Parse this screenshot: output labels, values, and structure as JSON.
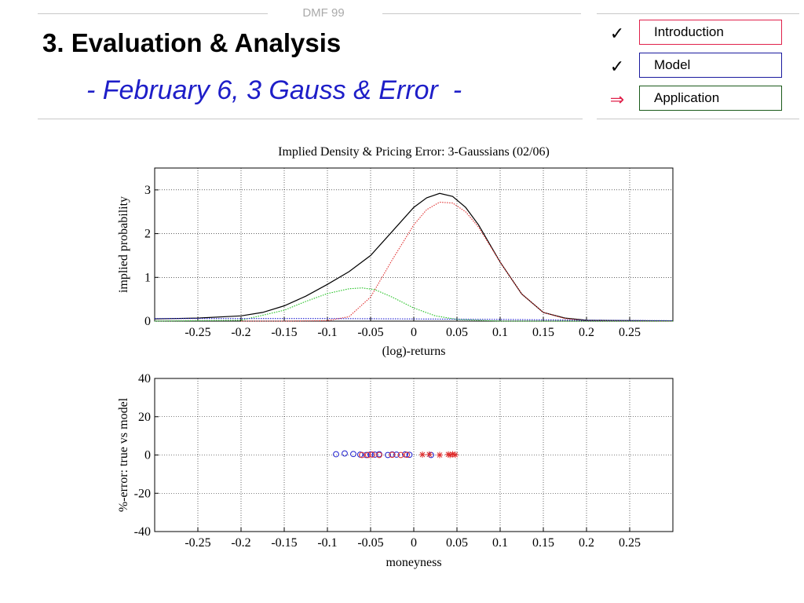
{
  "header": {
    "tag": "DMF 99",
    "title": "3. Evaluation & Analysis",
    "subtitle": "- February 6, 3 Gauss & Error  -"
  },
  "nav": {
    "items": [
      {
        "label": "Introduction",
        "mark": "✓",
        "mark_icon": "check-icon",
        "color": "#e0204a"
      },
      {
        "label": "Model",
        "mark": "✓",
        "mark_icon": "check-icon",
        "color": "#1a1a9e"
      },
      {
        "label": "Application",
        "mark": "⇒",
        "mark_icon": "arrow-right-icon",
        "color": "#1a5a1a"
      }
    ],
    "mark_colors": [
      "#000000",
      "#000000",
      "#e0204a"
    ]
  },
  "colors": {
    "title_text": "#000000",
    "subtitle_text": "#1e1ec8",
    "header_tag": "#aaaaaa"
  },
  "chart_data": [
    {
      "type": "line",
      "title": "Implied Density & Pricing Error: 3-Gaussians (02/06)",
      "xlabel": "(log)-returns",
      "ylabel": "implied probability",
      "xlim": [
        -0.3,
        0.3
      ],
      "ylim": [
        0,
        3.5
      ],
      "xticks": [
        -0.25,
        -0.2,
        -0.15,
        -0.1,
        -0.05,
        0,
        0.05,
        0.1,
        0.15,
        0.2,
        0.25
      ],
      "xtick_labels": [
        "-0.25",
        "-0.2",
        "-0.15",
        "-0.1",
        "-0.05",
        "0",
        "0.05",
        "0.1",
        "0.15",
        "0.2",
        "0.25"
      ],
      "yticks": [
        0,
        1,
        2,
        3
      ],
      "ytick_labels": [
        "0",
        "1",
        "2",
        "3"
      ],
      "grid": true,
      "series": [
        {
          "color": "#000000",
          "style": "solid",
          "x": [
            -0.3,
            -0.25,
            -0.2,
            -0.175,
            -0.15,
            -0.125,
            -0.1,
            -0.075,
            -0.05,
            -0.025,
            0,
            0.015,
            0.03,
            0.045,
            0.06,
            0.075,
            0.1,
            0.125,
            0.15,
            0.175,
            0.2,
            0.25,
            0.3
          ],
          "y": [
            0.05,
            0.07,
            0.12,
            0.2,
            0.35,
            0.57,
            0.84,
            1.13,
            1.5,
            2.05,
            2.6,
            2.82,
            2.92,
            2.85,
            2.6,
            2.2,
            1.35,
            0.62,
            0.2,
            0.07,
            0.02,
            0.01,
            0.005
          ]
        },
        {
          "color": "#e03030",
          "style": "dotted",
          "x": [
            -0.2,
            -0.15,
            -0.1,
            -0.075,
            -0.05,
            -0.025,
            0,
            0.015,
            0.03,
            0.045,
            0.06,
            0.075,
            0.1,
            0.125,
            0.15,
            0.175,
            0.2,
            0.3
          ],
          "y": [
            0,
            0,
            0.01,
            0.1,
            0.55,
            1.4,
            2.2,
            2.55,
            2.72,
            2.7,
            2.5,
            2.15,
            1.35,
            0.62,
            0.2,
            0.06,
            0.01,
            0
          ]
        },
        {
          "color": "#20c020",
          "style": "dotted",
          "x": [
            -0.3,
            -0.2,
            -0.15,
            -0.125,
            -0.1,
            -0.075,
            -0.06,
            -0.045,
            -0.025,
            0,
            0.025,
            0.05,
            0.1,
            0.2,
            0.3
          ],
          "y": [
            0,
            0.02,
            0.25,
            0.45,
            0.63,
            0.74,
            0.76,
            0.72,
            0.55,
            0.3,
            0.12,
            0.04,
            0,
            0,
            0
          ]
        },
        {
          "color": "#2020d0",
          "style": "dotted",
          "x": [
            -0.3,
            -0.2,
            -0.1,
            0,
            0.1,
            0.2,
            0.3
          ],
          "y": [
            0.06,
            0.06,
            0.06,
            0.05,
            0.04,
            0.02,
            0.01
          ]
        }
      ]
    },
    {
      "type": "scatter",
      "title": "",
      "xlabel": "moneyness",
      "ylabel": "%-error: true vs model",
      "xlim": [
        -0.3,
        0.3
      ],
      "ylim": [
        -40,
        40
      ],
      "xticks": [
        -0.25,
        -0.2,
        -0.15,
        -0.1,
        -0.05,
        0,
        0.05,
        0.1,
        0.15,
        0.2,
        0.25
      ],
      "xtick_labels": [
        "-0.25",
        "-0.2",
        "-0.15",
        "-0.1",
        "-0.05",
        "0",
        "0.05",
        "0.1",
        "0.15",
        "0.2",
        "0.25"
      ],
      "yticks": [
        -40,
        -20,
        0,
        20,
        40
      ],
      "ytick_labels": [
        "-40",
        "-20",
        "0",
        "20",
        "40"
      ],
      "grid": true,
      "series": [
        {
          "marker": "circle",
          "color": "#2020d0",
          "x": [
            -0.09,
            -0.08,
            -0.07,
            -0.062,
            -0.055,
            -0.05,
            -0.045,
            -0.04,
            -0.03,
            -0.025,
            -0.02,
            -0.01,
            -0.005,
            0.02
          ],
          "y": [
            0.4,
            0.8,
            0.5,
            0.2,
            0,
            0.3,
            0.2,
            0.4,
            0,
            0.3,
            0.2,
            0.3,
            0.1,
            0
          ]
        },
        {
          "marker": "circle",
          "color": "#e03030",
          "x": [
            -0.06,
            -0.053,
            -0.048,
            -0.04,
            -0.025,
            -0.015,
            -0.008
          ],
          "y": [
            0,
            0,
            0.2,
            0,
            0.1,
            0,
            0.1
          ]
        },
        {
          "marker": "star",
          "color": "#e03030",
          "x": [
            0.01,
            0.018,
            0.03,
            0.04,
            0.042,
            0.045,
            0.048
          ],
          "y": [
            0.2,
            0.3,
            0,
            0.3,
            0,
            0.4,
            0.1
          ]
        }
      ]
    }
  ]
}
